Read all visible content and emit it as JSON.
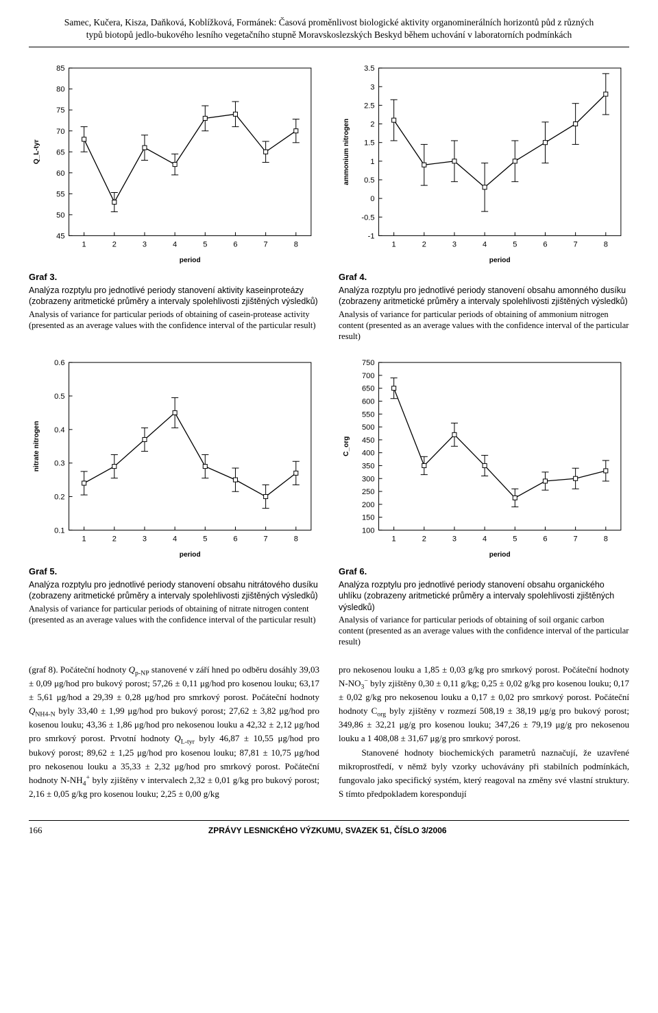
{
  "running_head_line1": "Samec, Kučera, Kisza, Daňková, Koblížková, Formánek: Časová proměnlivost biologické aktivity organominerálních horizontů půd z různých",
  "running_head_line2": "typů biotopů jedlo-bukového lesního vegetačního stupně Moravskoslezských Beskyd během uchování v laboratorních podmínkách",
  "charts": {
    "g3": {
      "type": "errorbar",
      "x": [
        1,
        2,
        3,
        4,
        5,
        6,
        7,
        8
      ],
      "y": [
        68,
        53,
        66,
        62,
        73,
        74,
        65,
        70
      ],
      "err": [
        3.0,
        2.3,
        3.0,
        2.5,
        3.0,
        3.0,
        2.5,
        2.8
      ],
      "ylim": [
        45,
        85
      ],
      "ytick": [
        45,
        50,
        55,
        60,
        65,
        70,
        75,
        80,
        85
      ],
      "xlim": [
        0.5,
        8.5
      ],
      "xtick": [
        1,
        2,
        3,
        4,
        5,
        6,
        7,
        8
      ],
      "ylabel": "Q_L-tyr",
      "xlabel": "period",
      "tick_fontsize": 11,
      "label_fontsize": 10,
      "line_color": "#000000",
      "bg": "#ffffff",
      "border_color": "#000000"
    },
    "g4": {
      "type": "errorbar",
      "x": [
        1,
        2,
        3,
        4,
        5,
        6,
        7,
        8
      ],
      "y": [
        2.1,
        0.9,
        1.0,
        0.3,
        1.0,
        1.5,
        2.0,
        2.8
      ],
      "err": [
        0.55,
        0.55,
        0.55,
        0.65,
        0.55,
        0.55,
        0.55,
        0.55
      ],
      "ylim": [
        -1.0,
        3.5
      ],
      "ytick": [
        -1.0,
        -0.5,
        0.0,
        0.5,
        1.0,
        1.5,
        2.0,
        2.5,
        3.0,
        3.5
      ],
      "xlim": [
        0.5,
        8.5
      ],
      "xtick": [
        1,
        2,
        3,
        4,
        5,
        6,
        7,
        8
      ],
      "ylabel": "ammonium nitrogen",
      "xlabel": "period",
      "tick_fontsize": 11,
      "label_fontsize": 10,
      "line_color": "#000000",
      "bg": "#ffffff",
      "border_color": "#000000"
    },
    "g5": {
      "type": "errorbar",
      "x": [
        1,
        2,
        3,
        4,
        5,
        6,
        7,
        8
      ],
      "y": [
        0.24,
        0.29,
        0.37,
        0.45,
        0.29,
        0.25,
        0.2,
        0.27
      ],
      "err": [
        0.035,
        0.035,
        0.035,
        0.045,
        0.035,
        0.035,
        0.035,
        0.035
      ],
      "ylim": [
        0.1,
        0.6
      ],
      "ytick": [
        0.1,
        0.2,
        0.3,
        0.4,
        0.5,
        0.6
      ],
      "xlim": [
        0.5,
        8.5
      ],
      "xtick": [
        1,
        2,
        3,
        4,
        5,
        6,
        7,
        8
      ],
      "ylabel": "nitrate nitrogen",
      "xlabel": "period",
      "tick_fontsize": 11,
      "label_fontsize": 10,
      "line_color": "#000000",
      "bg": "#ffffff",
      "border_color": "#000000"
    },
    "g6": {
      "type": "errorbar",
      "x": [
        1,
        2,
        3,
        4,
        5,
        6,
        7,
        8
      ],
      "y": [
        650,
        350,
        470,
        350,
        225,
        290,
        300,
        330
      ],
      "err": [
        40,
        35,
        45,
        40,
        35,
        35,
        40,
        40
      ],
      "ylim": [
        100,
        750
      ],
      "ytick": [
        100,
        150,
        200,
        250,
        300,
        350,
        400,
        450,
        500,
        550,
        600,
        650,
        700,
        750
      ],
      "xlim": [
        0.5,
        8.5
      ],
      "xtick": [
        1,
        2,
        3,
        4,
        5,
        6,
        7,
        8
      ],
      "ylabel": "C_org",
      "xlabel": "period",
      "tick_fontsize": 11,
      "label_fontsize": 10,
      "line_color": "#000000",
      "bg": "#ffffff",
      "border_color": "#000000"
    }
  },
  "captions": {
    "g3": {
      "title": "Graf 3.",
      "cz": "Analýza rozptylu pro jednotlivé periody stanovení aktivity kaseinproteázy (zobrazeny aritmetické průměry a intervaly spolehlivosti zjištěných výsledků)",
      "en": "Analysis of variance for particular periods of obtaining of casein-protease activity (presented as an average values with the confidence interval of the particular result)"
    },
    "g4": {
      "title": "Graf 4.",
      "cz": "Analýza rozptylu pro jednotlivé periody stanovení obsahu amonného dusíku (zobrazeny aritmetické průměry a intervaly spolehlivosti zjištěných výsledků)",
      "en": "Analysis of variance for particular periods of obtaining of ammonium nitrogen content (presented as an average values with the confidence interval of the particular result)"
    },
    "g5": {
      "title": "Graf 5.",
      "cz": "Analýza rozptylu pro jednotlivé periody stanovení obsahu nitrátového dusíku (zobrazeny aritmetické průměry a intervaly spolehlivosti zjištěných výsledků)",
      "en": "Analysis of variance for particular periods of obtaining of nitrate nitrogen content (presented as an average values with the confidence interval of the particular result)"
    },
    "g6": {
      "title": "Graf 6.",
      "cz": "Analýza rozptylu pro jednotlivé periody stanovení obsahu organického uhlíku (zobrazeny aritmetické průměry a intervaly spolehlivosti zjištěných výsledků)",
      "en": "Analysis of variance for particular periods of obtaining of soil organic carbon content (presented as an average values with the confidence interval of the particular result)"
    }
  },
  "body": {
    "left_html": "(graf 8). Počáteční hodnoty <i>Q</i><sub>p-NP</sub> stanovené v září hned po odběru dosáhly 39,03 ± 0,09 μg/hod pro bukový porost; 57,26 ± 0,11 μg/hod pro kosenou louku; 63,17 ± 5,61 μg/hod a 29,39 ± 0,28 μg/hod pro smrkový porost. Počáteční hodnoty <i>Q</i><sub>NH4-N</sub> byly 33,40 ± 1,99 μg/hod pro bukový porost; 27,62 ± 3,82 μg/hod pro kosenou louku; 43,36 ± 1,86 μg/hod pro nekosenou louku a 42,32 ± 2,12 μg/hod pro smrkový porost. Prvotní hodnoty <i>Q</i><sub>L-tyr</sub> byly 46,87 ± 10,55 μg/hod pro bukový porost; 89,62 ± 1,25 μg/hod pro kosenou louku; 87,81 ± 10,75 μg/hod pro nekosenou louku a 35,33 ± 2,32 μg/hod pro smrkový porost. Počáteční hodnoty N-NH<sub>4</sub><sup>+</sup> byly zjištěny v intervalech 2,32 ± 0,01 g/kg pro bukový porost; 2,16 ± 0,05 g/kg pro kosenou louku; 2,25 ± 0,00 g/kg",
    "right_html": "pro nekosenou louku a 1,85 ± 0,03 g/kg pro smrkový porost. Počáteční hodnoty N-NO<sub>3</sub><sup>−</sup> byly zjištěny 0,30 ± 0,11 g/kg; 0,25 ± 0,02 g/kg pro kosenou louku; 0,17 ± 0,02 g/kg pro nekosenou louku a 0,17 ± 0,02 pro smrkový porost. Počáteční hodnoty C<sub>org</sub> byly zjištěny v rozmezí 508,19 ± 38,19 μg/g pro bukový porost; 349,86 ± 32,21 μg/g pro kosenou louku; 347,26 ± 79,19 μg/g pro nekosenou louku a 1 408,08 ± 31,67 μg/g pro smrkový porost.<br>&nbsp;&nbsp;&nbsp;&nbsp;Stanovené hodnoty biochemických parametrů naznačují, že uzavřené mikroprostředí, v němž byly vzorky uchovávány při stabilních podmínkách, fungovalo jako specifický systém, který reagoval na změny své vlastní struktury. S tímto předpokladem korespondují"
  },
  "footer": {
    "page": "166",
    "journal": "ZPRÁVY LESNICKÉHO VÝZKUMU, SVAZEK 51, ČÍSLO 3/2006"
  }
}
